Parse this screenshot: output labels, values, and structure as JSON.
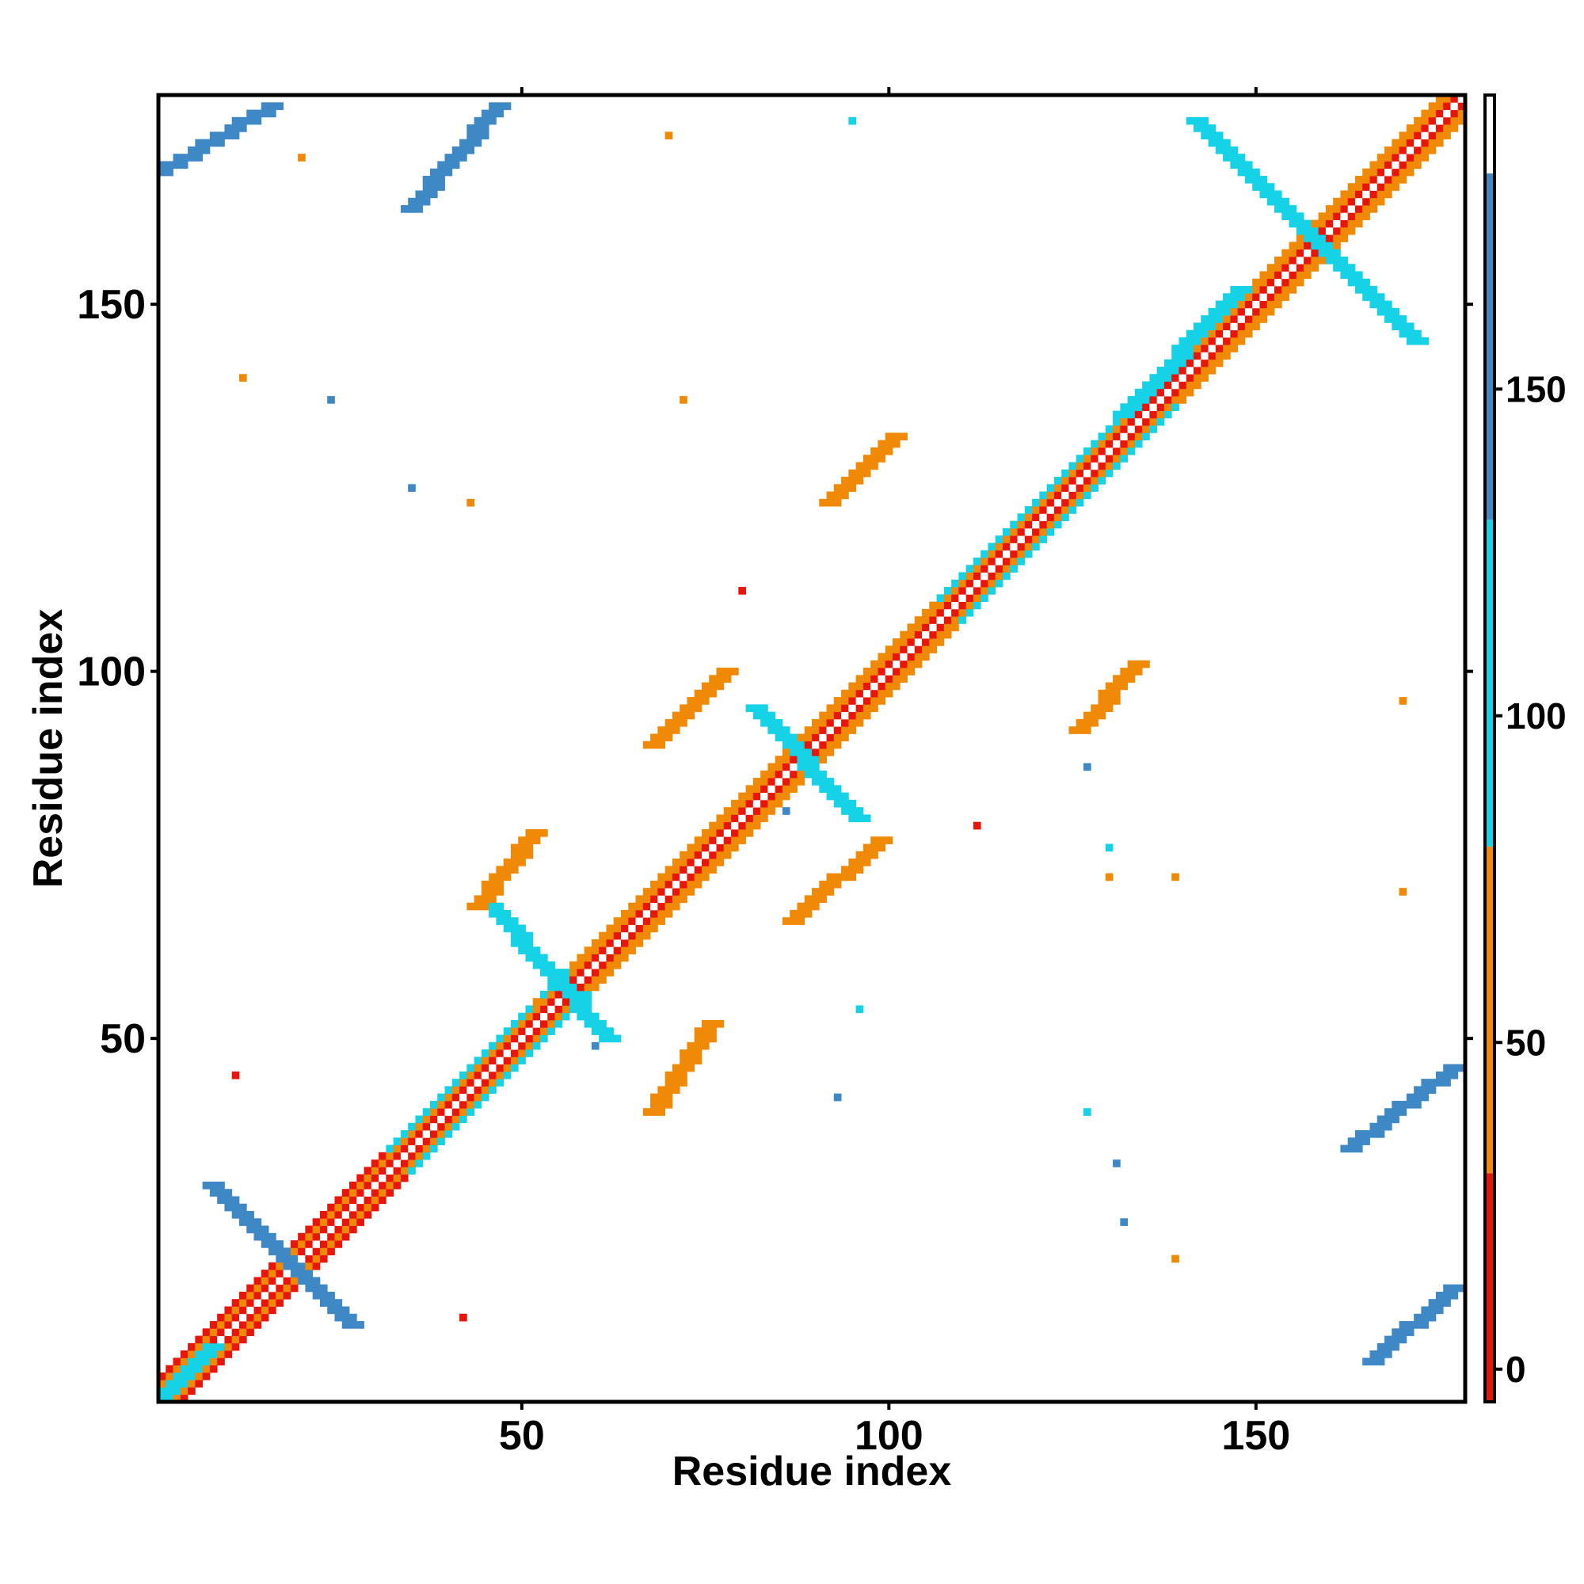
{
  "chart_data": {
    "type": "heatmap",
    "title": "",
    "xlabel": "Residue index",
    "ylabel": "Residue index",
    "xlim": [
      1,
      178
    ],
    "ylim": [
      1,
      178
    ],
    "x_ticks": [
      50,
      100,
      150
    ],
    "y_ticks": [
      50,
      100,
      150
    ],
    "colorbar": {
      "ticks": [
        0,
        50,
        100,
        150
      ],
      "range": [
        -5,
        195
      ],
      "bands": [
        {
          "from": -5,
          "to": 30,
          "color": "#e8150b"
        },
        {
          "from": 30,
          "to": 80,
          "color": "#f08a06"
        },
        {
          "from": 80,
          "to": 130,
          "color": "#16d2e6"
        },
        {
          "from": 130,
          "to": 183,
          "color": "#3f88c6"
        },
        {
          "from": 183,
          "to": 195,
          "color": "#ffffff"
        }
      ]
    },
    "grid": false,
    "diagonal": {
      "from": 1,
      "to": 178,
      "inner_value": 10,
      "edge_value": 45,
      "bands": [
        {
          "from": 1,
          "to": 35,
          "value": 15
        },
        {
          "from": 35,
          "to": 60,
          "value": 100
        },
        {
          "from": 60,
          "to": 110,
          "value": 50
        },
        {
          "from": 110,
          "to": 140,
          "value": 100
        },
        {
          "from": 140,
          "to": 178,
          "value": 50
        }
      ]
    },
    "contact_blocks": [
      {
        "x": [
          1,
          8
        ],
        "y": [
          1,
          8
        ],
        "value": 100
      },
      {
        "x": [
          8,
          27
        ],
        "y": [
          11,
          30
        ],
        "value": 160,
        "orientation": "anti"
      },
      {
        "x": [
          46,
          62
        ],
        "y": [
          50,
          68
        ],
        "value": 100,
        "orientation": "anti"
      },
      {
        "x": [
          82,
          96
        ],
        "y": [
          80,
          95
        ],
        "value": 100,
        "orientation": "anti"
      },
      {
        "x": [
          132,
          148
        ],
        "y": [
          135,
          152
        ],
        "value": 100
      },
      {
        "x": [
          142,
          172
        ],
        "y": [
          145,
          175
        ],
        "value": 100,
        "orientation": "anti"
      },
      {
        "x": [
          68,
          76
        ],
        "y": [
          40,
          52
        ],
        "value": 40
      },
      {
        "x": [
          44,
          52
        ],
        "y": [
          68,
          78
        ],
        "value": 40
      },
      {
        "x": [
          68,
          78
        ],
        "y": [
          90,
          100
        ],
        "value": 40
      },
      {
        "x": [
          87,
          99
        ],
        "y": [
          66,
          77
        ],
        "value": 40
      },
      {
        "x": [
          92,
          101
        ],
        "y": [
          123,
          132
        ],
        "value": 40
      },
      {
        "x": [
          126,
          134
        ],
        "y": [
          92,
          101
        ],
        "value": 40
      },
      {
        "x": [
          1,
          16
        ],
        "y": [
          168,
          177
        ],
        "value": 160
      },
      {
        "x": [
          35,
          47
        ],
        "y": [
          163,
          177
        ],
        "value": 160
      },
      {
        "x": [
          163,
          177
        ],
        "y": [
          35,
          46
        ],
        "value": 160
      },
      {
        "x": [
          166,
          177
        ],
        "y": [
          6,
          16
        ],
        "value": 160
      }
    ],
    "scattered_points": [
      {
        "x": 20,
        "y": 170,
        "value": 55
      },
      {
        "x": 70,
        "y": 173,
        "value": 55
      },
      {
        "x": 95,
        "y": 175,
        "value": 100
      },
      {
        "x": 35,
        "y": 125,
        "value": 150
      },
      {
        "x": 43,
        "y": 123,
        "value": 55
      },
      {
        "x": 12,
        "y": 140,
        "value": 40
      },
      {
        "x": 24,
        "y": 137,
        "value": 140
      },
      {
        "x": 72,
        "y": 137,
        "value": 40
      },
      {
        "x": 80,
        "y": 111,
        "value": 20
      },
      {
        "x": 112,
        "y": 79,
        "value": 20
      },
      {
        "x": 130,
        "y": 72,
        "value": 60
      },
      {
        "x": 139,
        "y": 72,
        "value": 60
      },
      {
        "x": 170,
        "y": 70,
        "value": 60
      },
      {
        "x": 170,
        "y": 96,
        "value": 40
      },
      {
        "x": 127,
        "y": 40,
        "value": 100
      },
      {
        "x": 131,
        "y": 33,
        "value": 140
      },
      {
        "x": 139,
        "y": 20,
        "value": 40
      },
      {
        "x": 132,
        "y": 25,
        "value": 130
      },
      {
        "x": 42,
        "y": 12,
        "value": 20
      },
      {
        "x": 11,
        "y": 45,
        "value": 20
      },
      {
        "x": 96,
        "y": 54,
        "value": 90
      },
      {
        "x": 93,
        "y": 42,
        "value": 150
      },
      {
        "x": 60,
        "y": 49,
        "value": 150
      },
      {
        "x": 52,
        "y": 55,
        "value": 60
      },
      {
        "x": 86,
        "y": 81,
        "value": 150
      },
      {
        "x": 130,
        "y": 76,
        "value": 100
      },
      {
        "x": 127,
        "y": 87,
        "value": 150
      }
    ]
  }
}
